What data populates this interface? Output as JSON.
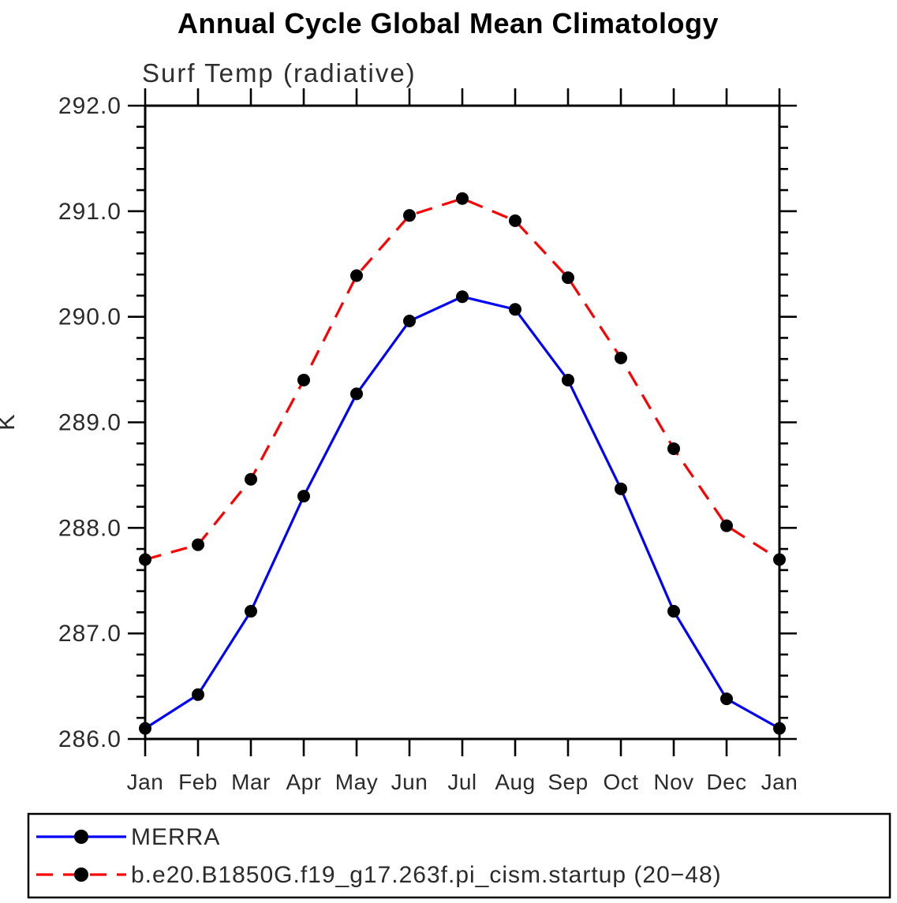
{
  "chart_data": {
    "type": "line",
    "title": "Annual Cycle Global Mean Climatology",
    "subtitle": "Surf Temp (radiative)",
    "ylabel": "K",
    "xlabel": "",
    "categories": [
      "Jan",
      "Feb",
      "Mar",
      "Apr",
      "May",
      "Jun",
      "Jul",
      "Aug",
      "Sep",
      "Oct",
      "Nov",
      "Dec",
      "Jan"
    ],
    "ylim": [
      286.0,
      292.0
    ],
    "y_major_step": 1.0,
    "y_minor_step": 0.2,
    "y_tick_decimals": 1,
    "grid": false,
    "legend_position": "bottom",
    "frame_color": "#000000",
    "series": [
      {
        "name": "MERRA",
        "color": "#0000ff",
        "line_style": "solid",
        "marker": "filled-circle",
        "marker_color": "#000000",
        "values": [
          286.1,
          286.42,
          287.21,
          288.3,
          289.27,
          289.96,
          290.19,
          290.07,
          289.4,
          288.37,
          287.21,
          286.38,
          286.1
        ]
      },
      {
        "name": "b.e20.B1850G.f19_g17.263f.pi_cism.startup (20−48)",
        "color": "#ff0000",
        "line_style": "dashed",
        "marker": "filled-circle",
        "marker_color": "#000000",
        "values": [
          287.7,
          287.84,
          288.46,
          289.4,
          290.39,
          290.96,
          291.12,
          290.91,
          290.37,
          289.61,
          288.75,
          288.02,
          287.7
        ]
      }
    ]
  }
}
